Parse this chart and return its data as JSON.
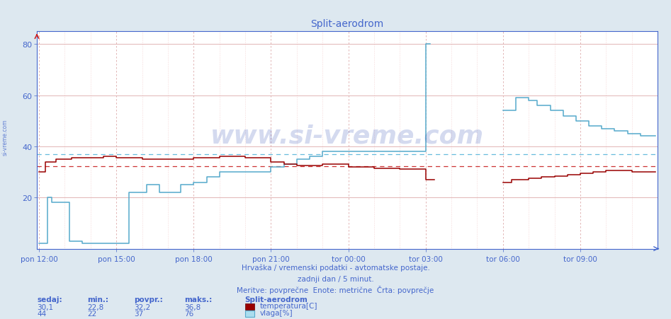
{
  "title": "Split-aerodrom",
  "title_color": "#4466cc",
  "bg_color": "#dde8f0",
  "plot_bg_color": "#ffffff",
  "x_tick_labels": [
    "pon 12:00",
    "pon 15:00",
    "pon 18:00",
    "pon 21:00",
    "tor 00:00",
    "tor 03:00",
    "tor 06:00",
    "tor 09:00"
  ],
  "x_tick_positions": [
    0,
    36,
    72,
    108,
    144,
    180,
    216,
    252
  ],
  "y_ticks": [
    20,
    40,
    60,
    80
  ],
  "ylim": [
    0,
    85
  ],
  "xlim": [
    -1,
    288
  ],
  "temp_avg": 32.2,
  "vlaga_avg": 37.0,
  "temp_color": "#990000",
  "vlaga_color": "#55aacc",
  "avg_temp_color": "#cc3333",
  "avg_vlaga_color": "#66bbdd",
  "footer1": "Hrvaška / vremenski podatki - avtomatske postaje.",
  "footer2": "zadnji dan / 5 minut.",
  "footer3": "Meritve: povprečne  Enote: metrične  Črta: povprečje",
  "watermark": "www.si-vreme.com",
  "label_temp": "temperatura[C]",
  "label_vlaga": "vlaga[%]",
  "label_color": "#4466cc",
  "stat_labels": [
    "sedaj:",
    "min.:",
    "povpr.:",
    "maks.:"
  ],
  "stat_temp": [
    "30,1",
    "22,8",
    "32,2",
    "36,8"
  ],
  "stat_vlaga": [
    "44",
    "22",
    "37",
    "76"
  ],
  "legend_title": "Split-aerodrom"
}
